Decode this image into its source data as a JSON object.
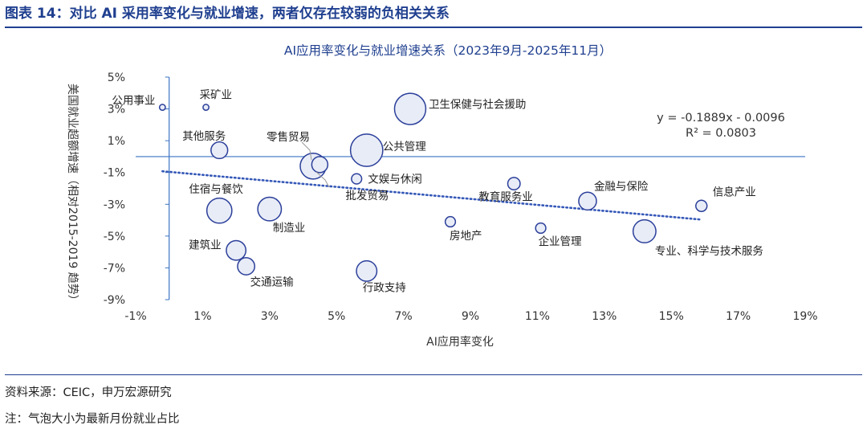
{
  "figure_title": "图表 14：对比 AI 采用率变化与就业增速，两者仅存在较弱的负相关关系",
  "source_note": "资料来源：CEIC，申万宏源研究",
  "bubble_note": "注：气泡大小为最新月份就业占比",
  "colors": {
    "brand": "#1f3f8f",
    "bubble_stroke": "#2b3f9a",
    "bubble_fill": "#e8ecf7",
    "trend": "#3558b8",
    "axis": "#3b73c4",
    "chart_title": "#1f3f8f"
  },
  "chart_data": {
    "type": "scatter",
    "subtype": "bubble",
    "title": "AI应用率变化与就业增速关系（2023年9月-2025年11月）",
    "xlabel": "AI应用率变化",
    "ylabel": "美国就业超额增速（相对2015-2019 趋势）",
    "xlim": [
      -0.01,
      0.19
    ],
    "ylim": [
      -0.09,
      0.05
    ],
    "x_ticks": [
      "-1%",
      "1%",
      "3%",
      "5%",
      "7%",
      "9%",
      "11%",
      "13%",
      "15%",
      "17%",
      "19%"
    ],
    "y_ticks": [
      "5%",
      "3%",
      "1%",
      "-1%",
      "-3%",
      "-5%",
      "-7%",
      "-9%"
    ],
    "grid": false,
    "legend": "none",
    "points": [
      {
        "label": "公用事业",
        "x": -0.002,
        "y": 0.031,
        "size": 0.5
      },
      {
        "label": "采矿业",
        "x": 0.011,
        "y": 0.031,
        "size": 0.5
      },
      {
        "label": "卫生保健与社会援助",
        "x": 0.072,
        "y": 0.03,
        "size": 14
      },
      {
        "label": "其他服务",
        "x": 0.015,
        "y": 0.004,
        "size": 4
      },
      {
        "label": "零售贸易",
        "x": 0.043,
        "y": -0.006,
        "size": 9.5
      },
      {
        "label": "公共管理",
        "x": 0.059,
        "y": 0.004,
        "size": 15
      },
      {
        "label": "批发贸易",
        "x": 0.045,
        "y": -0.005,
        "size": 3.7
      },
      {
        "label": "文娱与休闲",
        "x": 0.056,
        "y": -0.014,
        "size": 1.5
      },
      {
        "label": "教育服务业",
        "x": 0.103,
        "y": -0.017,
        "size": 2.2
      },
      {
        "label": "金融与保险",
        "x": 0.125,
        "y": -0.028,
        "size": 4.5
      },
      {
        "label": "信息产业",
        "x": 0.159,
        "y": -0.031,
        "size": 1.8
      },
      {
        "label": "住宿与餐饮",
        "x": 0.015,
        "y": -0.034,
        "size": 9
      },
      {
        "label": "制造业",
        "x": 0.03,
        "y": -0.033,
        "size": 8
      },
      {
        "label": "房地产",
        "x": 0.084,
        "y": -0.041,
        "size": 1.5
      },
      {
        "label": "企业管理",
        "x": 0.111,
        "y": -0.045,
        "size": 1.5
      },
      {
        "label": "专业、科学与技术服务",
        "x": 0.142,
        "y": -0.047,
        "size": 7.5
      },
      {
        "label": "建筑业",
        "x": 0.02,
        "y": -0.059,
        "size": 5.5
      },
      {
        "label": "交通运输",
        "x": 0.023,
        "y": -0.069,
        "size": 4.2
      },
      {
        "label": "行政支持",
        "x": 0.059,
        "y": -0.072,
        "size": 6
      }
    ],
    "trendline": {
      "equation": "y = -0.1889x - 0.0096",
      "r2_text": "R² = 0.0803",
      "slope": -0.1889,
      "intercept": -0.0096,
      "x_range": [
        -0.002,
        0.159
      ]
    }
  }
}
